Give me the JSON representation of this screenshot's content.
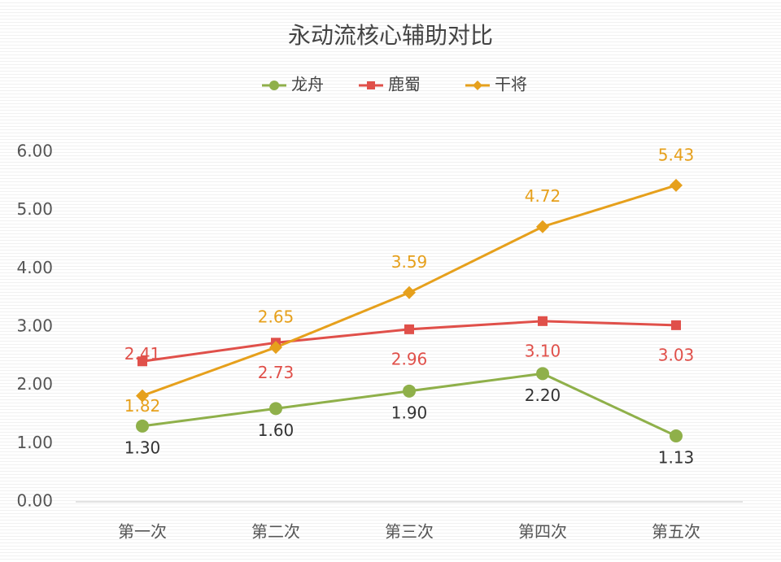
{
  "chart_data": {
    "type": "line",
    "title": "永动流核心辅助对比",
    "categories": [
      "第一次",
      "第二次",
      "第三次",
      "第四次",
      "第五次"
    ],
    "series": [
      {
        "name": "龙舟",
        "color": "#8fb04a",
        "marker": "circle",
        "values": [
          1.3,
          1.6,
          1.9,
          2.2,
          1.13
        ],
        "value_labels": [
          "1.30",
          "1.60",
          "1.90",
          "2.20",
          "1.13"
        ]
      },
      {
        "name": "鹿蜀",
        "color": "#e0504a",
        "marker": "square",
        "values": [
          2.41,
          2.73,
          2.96,
          3.1,
          3.03
        ],
        "value_labels": [
          "2.41",
          "2.73",
          "2.96",
          "3.10",
          "3.03"
        ]
      },
      {
        "name": "干将",
        "color": "#e6a01c",
        "marker": "diamond",
        "values": [
          1.82,
          2.65,
          3.59,
          4.72,
          5.43
        ],
        "value_labels": [
          "1.82",
          "2.65",
          "3.59",
          "4.72",
          "5.43"
        ]
      }
    ],
    "ylim": [
      0,
      6
    ],
    "yticks": [
      {
        "value": 0,
        "label": "0.00"
      },
      {
        "value": 1,
        "label": "1.00"
      },
      {
        "value": 2,
        "label": "2.00"
      },
      {
        "value": 3,
        "label": "3.00"
      },
      {
        "value": 4,
        "label": "4.00"
      },
      {
        "value": 5,
        "label": "5.00"
      },
      {
        "value": 6,
        "label": "6.00"
      }
    ],
    "legend": "top"
  }
}
